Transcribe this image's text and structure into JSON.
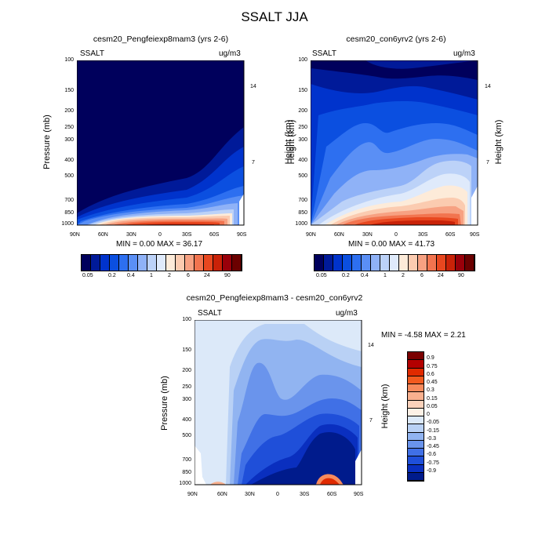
{
  "title": "SSALT JJA",
  "chart_data": [
    {
      "type": "heatmap",
      "title": "cesm20_Pengfeiexp8mam3 (yrs 2-6)",
      "left_label": "SSALT",
      "right_label": "ug/m3",
      "ylabel": "Pressure (mb)",
      "ylabel_right": "Height (km)",
      "x_ticks": [
        "90N",
        "60N",
        "30N",
        "0",
        "30S",
        "60S",
        "90S"
      ],
      "y_ticks": [
        "100",
        "150",
        "200",
        "250",
        "300",
        "400",
        "500",
        "700",
        "850",
        "1000"
      ],
      "y_right_ticks": [
        "14",
        "7"
      ],
      "min_max_text": "MIN =   0.00   MAX =  36.17",
      "min": 0.0,
      "max": 36.17,
      "ylim": [
        1000,
        100
      ],
      "xlim": [
        "90N",
        "90S"
      ]
    },
    {
      "type": "heatmap",
      "title": "cesm20_con6yrv2 (yrs 2-6)",
      "left_label": "SSALT",
      "right_label": "ug/m3",
      "ylabel": "",
      "ylabel_right": "Height (km)",
      "x_ticks": [
        "90N",
        "60N",
        "30N",
        "0",
        "30S",
        "60S",
        "90S"
      ],
      "y_ticks": [
        "100",
        "150",
        "200",
        "250",
        "300",
        "400",
        "500",
        "700",
        "850",
        "1000"
      ],
      "y_right_ticks": [
        "14",
        "7"
      ],
      "min_max_text": "MIN =   0.00   MAX =  41.73",
      "min": 0.0,
      "max": 41.73,
      "ylim": [
        1000,
        100
      ],
      "xlim": [
        "90N",
        "90S"
      ]
    },
    {
      "type": "heatmap",
      "title": "cesm20_Pengfeiexp8mam3 - cesm20_con6yrv2",
      "left_label": "SSALT",
      "right_label": "ug/m3",
      "ylabel": "Pressure (mb)",
      "ylabel_right": "Height (km)",
      "x_ticks": [
        "90N",
        "60N",
        "30N",
        "0",
        "30S",
        "60S",
        "90S"
      ],
      "y_ticks": [
        "100",
        "150",
        "200",
        "250",
        "300",
        "400",
        "500",
        "700",
        "850",
        "1000"
      ],
      "y_right_ticks": [
        "14",
        "7"
      ],
      "min_max_text": "MIN =  -4.58   MAX =    2.21",
      "min": -4.58,
      "max": 2.21,
      "ylim": [
        1000,
        100
      ],
      "xlim": [
        "90N",
        "90S"
      ]
    }
  ],
  "colorbar_top": {
    "labels": [
      "0.05",
      "0.2",
      "0.4",
      "1",
      "2",
      "6",
      "24",
      "90"
    ],
    "colors": [
      "#00005c",
      "#001a99",
      "#0033cc",
      "#0b4fe0",
      "#2d6ff0",
      "#5a8ff5",
      "#8fb2f7",
      "#bcd2f8",
      "#dfeafb",
      "#fdebd9",
      "#fbcbb0",
      "#f7a182",
      "#f2744f",
      "#e8471f",
      "#c92208",
      "#99000a",
      "#6b0000"
    ]
  },
  "colorbar_diff": {
    "labels": [
      "0.9",
      "0.75",
      "0.6",
      "0.45",
      "0.3",
      "0.15",
      "0.05",
      "0",
      "-0.05",
      "-0.15",
      "-0.3",
      "-0.45",
      "-0.6",
      "-0.75",
      "-0.9"
    ],
    "colors": [
      "#7a0000",
      "#b30000",
      "#e02a00",
      "#f25a1f",
      "#f78a5c",
      "#f9b08e",
      "#fbd2bb",
      "#fdf1e6",
      "#dce9f9",
      "#b9d1f5",
      "#91b4f1",
      "#6a94ec",
      "#4070e6",
      "#1f4fd9",
      "#0a2fbf",
      "#001b8c"
    ]
  }
}
